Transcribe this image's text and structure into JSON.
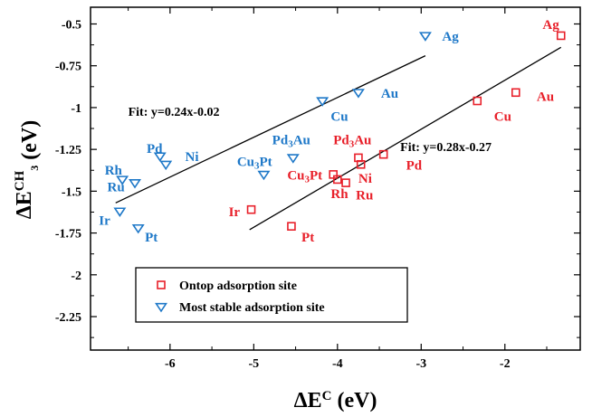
{
  "chart_data": {
    "type": "scatter",
    "xlabel": {
      "main": "ΔE",
      "sup": "C",
      "unit": " (eV)"
    },
    "ylabel": {
      "main": "ΔE",
      "sup": "CH",
      "sup_sub": "3",
      "unit": " (eV)"
    },
    "xlim": [
      -6.95,
      -1.1
    ],
    "ylim": [
      -2.45,
      -0.4
    ],
    "x_ticks": [
      -6,
      -5,
      -4,
      -3,
      -2
    ],
    "x_tick_labels": [
      "-6",
      "-5",
      "-4",
      "-3",
      "-2"
    ],
    "y_ticks": [
      -0.5,
      -0.75,
      -1,
      -1.25,
      -1.5,
      -1.75,
      -2,
      -2.25
    ],
    "y_tick_labels": [
      "-0.5",
      "-0.75",
      "-1",
      "-1.25",
      "-1.5",
      "-1.75",
      "-2",
      "-2.25"
    ],
    "colors": {
      "ontop": "#e8202a",
      "stable": "#1e78c8",
      "fit": "#000000"
    },
    "series": [
      {
        "name": "Ontop adsorption site",
        "marker": "square",
        "color": "#e8202a",
        "points": [
          {
            "label": "Ag",
            "x": -1.33,
            "y": -0.57,
            "lx": -1.55,
            "ly": -0.53
          },
          {
            "label": "Au",
            "x": -1.87,
            "y": -0.91,
            "lx": -1.62,
            "ly": -0.96
          },
          {
            "label": "Cu",
            "x": -2.33,
            "y": -0.96,
            "lx": -2.13,
            "ly": -1.08
          },
          {
            "label": "Pd3Au",
            "x": -3.75,
            "y": -1.3,
            "lx": -4.05,
            "ly": -1.22
          },
          {
            "label": "Pd",
            "x": -3.45,
            "y": -1.28,
            "lx": -3.18,
            "ly": -1.37
          },
          {
            "label": "Ni",
            "x": -3.72,
            "y": -1.34,
            "lx": -3.75,
            "ly": -1.45
          },
          {
            "label": "Cu3Pt",
            "x": -4.05,
            "y": -1.4,
            "lx": -4.6,
            "ly": -1.43
          },
          {
            "label": "Ru",
            "x": -3.9,
            "y": -1.45,
            "lx": -3.78,
            "ly": -1.55
          },
          {
            "label": "Rh",
            "x": -4.0,
            "y": -1.43,
            "lx": -4.08,
            "ly": -1.54
          },
          {
            "label": "Ir",
            "x": -5.03,
            "y": -1.61,
            "lx": -5.3,
            "ly": -1.65
          },
          {
            "label": "Pt",
            "x": -4.55,
            "y": -1.71,
            "lx": -4.43,
            "ly": -1.8
          }
        ]
      },
      {
        "name": "Most stable adsorption site",
        "marker": "triangle-down",
        "color": "#1e78c8",
        "points": [
          {
            "label": "Ag",
            "x": -2.95,
            "y": -0.57,
            "lx": -2.75,
            "ly": -0.6
          },
          {
            "label": "Au",
            "x": -3.75,
            "y": -0.91,
            "lx": -3.48,
            "ly": -0.94
          },
          {
            "label": "Cu",
            "x": -4.18,
            "y": -0.96,
            "lx": -4.08,
            "ly": -1.08
          },
          {
            "label": "Pd3Au",
            "x": -4.53,
            "y": -1.3,
            "lx": -4.78,
            "ly": -1.22
          },
          {
            "label": "Cu3Pt",
            "x": -4.88,
            "y": -1.4,
            "lx": -5.2,
            "ly": -1.35
          },
          {
            "label": "Pd",
            "x": -6.12,
            "y": -1.29,
            "lx": -6.28,
            "ly": -1.27
          },
          {
            "label": "Ni",
            "x": -6.05,
            "y": -1.34,
            "lx": -5.82,
            "ly": -1.32
          },
          {
            "label": "Rh",
            "x": -6.57,
            "y": -1.43,
            "lx": -6.78,
            "ly": -1.4
          },
          {
            "label": "Ru",
            "x": -6.42,
            "y": -1.45,
            "lx": -6.75,
            "ly": -1.5
          },
          {
            "label": "Ir",
            "x": -6.6,
            "y": -1.62,
            "lx": -6.85,
            "ly": -1.7
          },
          {
            "label": "Pt",
            "x": -6.38,
            "y": -1.72,
            "lx": -6.3,
            "ly": -1.8
          }
        ]
      }
    ],
    "fit_lines": [
      {
        "label": "Fit: y=0.24x-0.02",
        "x": [
          -6.65,
          -2.95
        ],
        "y": [
          -1.57,
          -0.69
        ],
        "lx": -6.5,
        "ly": -1.05
      },
      {
        "label": "Fit: y=0.28x-0.27",
        "x": [
          -5.05,
          -1.33
        ],
        "y": [
          -1.73,
          -0.64
        ],
        "lx": -3.25,
        "ly": -1.26
      }
    ],
    "legend": {
      "position": "bottom-left",
      "items": [
        {
          "label": "Ontop adsorption site",
          "marker": "square",
          "color": "#e8202a"
        },
        {
          "label": "Most stable adsorption site",
          "marker": "triangle-down",
          "color": "#1e78c8"
        }
      ]
    }
  }
}
